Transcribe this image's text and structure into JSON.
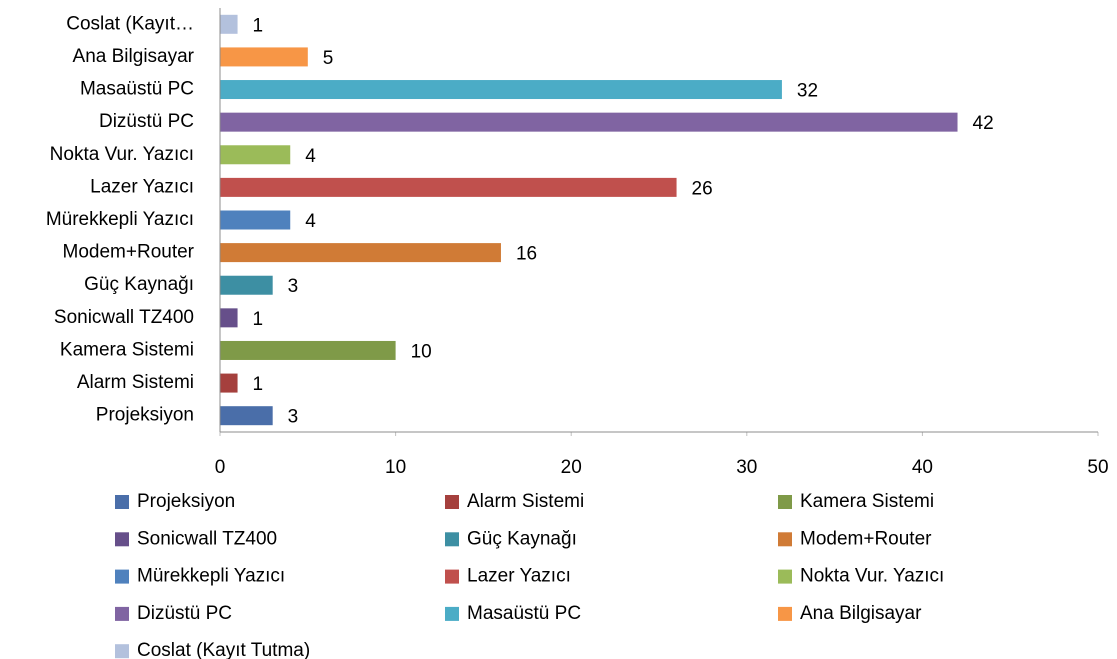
{
  "chart_data": {
    "type": "bar",
    "orientation": "horizontal",
    "categories": [
      "Projeksiyon",
      "Alarm Sistemi",
      "Kamera Sistemi",
      "Sonicwall TZ400",
      "Güç Kaynağı",
      "Modem+Router",
      "Mürekkepli Yazıcı",
      "Lazer Yazıcı",
      "Nokta Vur. Yazıcı",
      "Dizüstü PC",
      "Masaüstü PC",
      "Ana Bilgisayar",
      "Coslat (Kayıt…"
    ],
    "values": [
      3,
      1,
      10,
      1,
      3,
      16,
      4,
      26,
      4,
      42,
      32,
      5,
      1
    ],
    "colors": [
      "#4a6ea9",
      "#a5403d",
      "#7f9a48",
      "#664f8a",
      "#3d8fa3",
      "#d07b36",
      "#4f81bd",
      "#c0504d",
      "#9bbb59",
      "#8064a2",
      "#4bacc6",
      "#f79646",
      "#b3c1dd"
    ],
    "legend": [
      "Projeksiyon",
      "Alarm Sistemi",
      "Kamera Sistemi",
      "Sonicwall TZ400",
      "Güç Kaynağı",
      "Modem+Router",
      "Mürekkepli Yazıcı",
      "Lazer Yazıcı",
      "Nokta Vur. Yazıcı",
      "Dizüstü PC",
      "Masaüstü PC",
      "Ana Bilgisayar",
      "Coslat (Kayıt Tutma)"
    ],
    "xlim": [
      0,
      50
    ],
    "xticks": [
      0,
      10,
      20,
      30,
      40,
      50
    ],
    "grid": false,
    "legend_position": "bottom"
  }
}
